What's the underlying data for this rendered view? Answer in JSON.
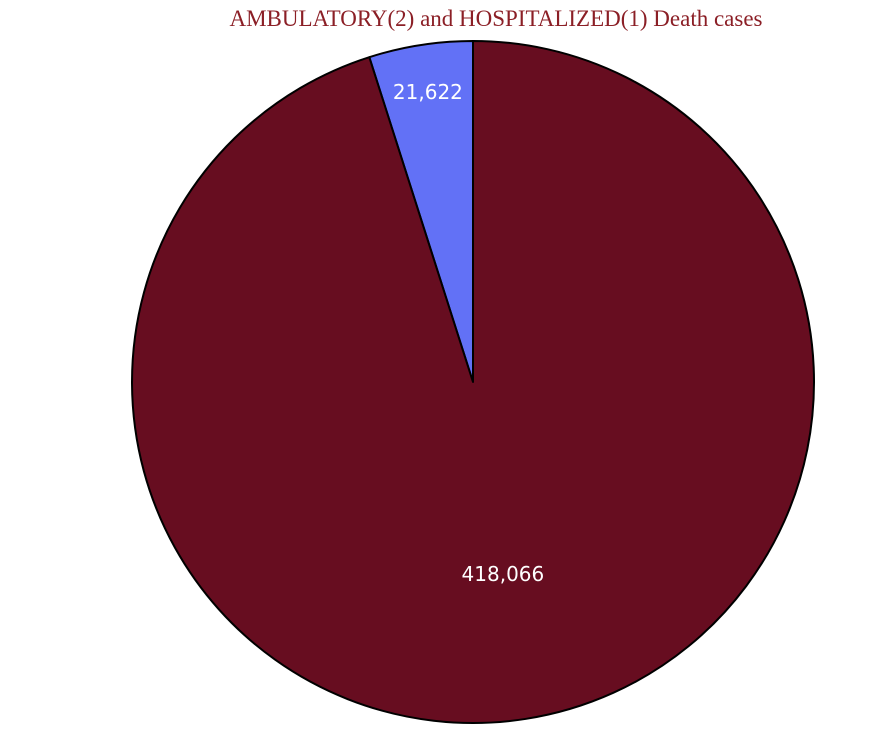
{
  "chart_data": {
    "type": "pie",
    "title": "AMBULATORY(2) and HOSPITALIZED(1) Death cases",
    "slices": [
      {
        "value": 21622,
        "label": "21,622",
        "color": "#6271f6"
      },
      {
        "value": 418066,
        "label": "418,066",
        "color": "#670d20"
      }
    ],
    "start_angle_deg": 0,
    "direction": "counterclockwise",
    "title_color": "#8b1f26",
    "label_color": "#ffffff",
    "stroke_color": "#000000",
    "legend": "none"
  }
}
